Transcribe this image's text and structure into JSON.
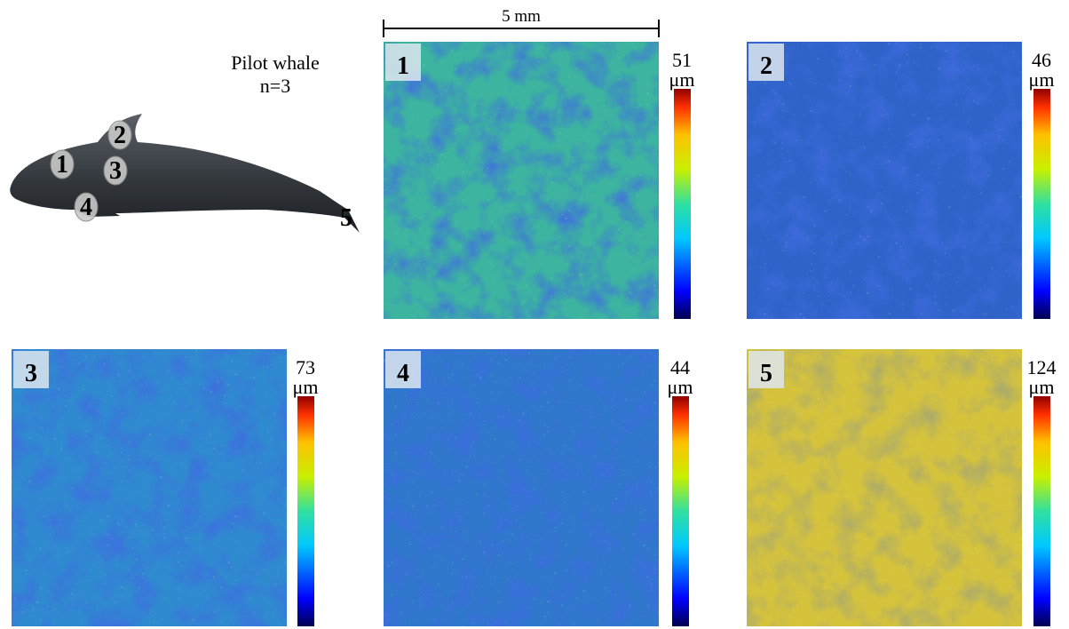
{
  "title": "Pilot whale",
  "subtitle": "n=3",
  "scale_bar": "5 mm",
  "whale_markers": [
    "1",
    "2",
    "3",
    "4",
    "5"
  ],
  "panels": [
    {
      "label": "1",
      "max": "51",
      "unit": "μm"
    },
    {
      "label": "2",
      "max": "46",
      "unit": "μm"
    },
    {
      "label": "3",
      "max": "73",
      "unit": "μm"
    },
    {
      "label": "4",
      "max": "44",
      "unit": "μm"
    },
    {
      "label": "5",
      "max": "124",
      "unit": "μm"
    }
  ]
}
